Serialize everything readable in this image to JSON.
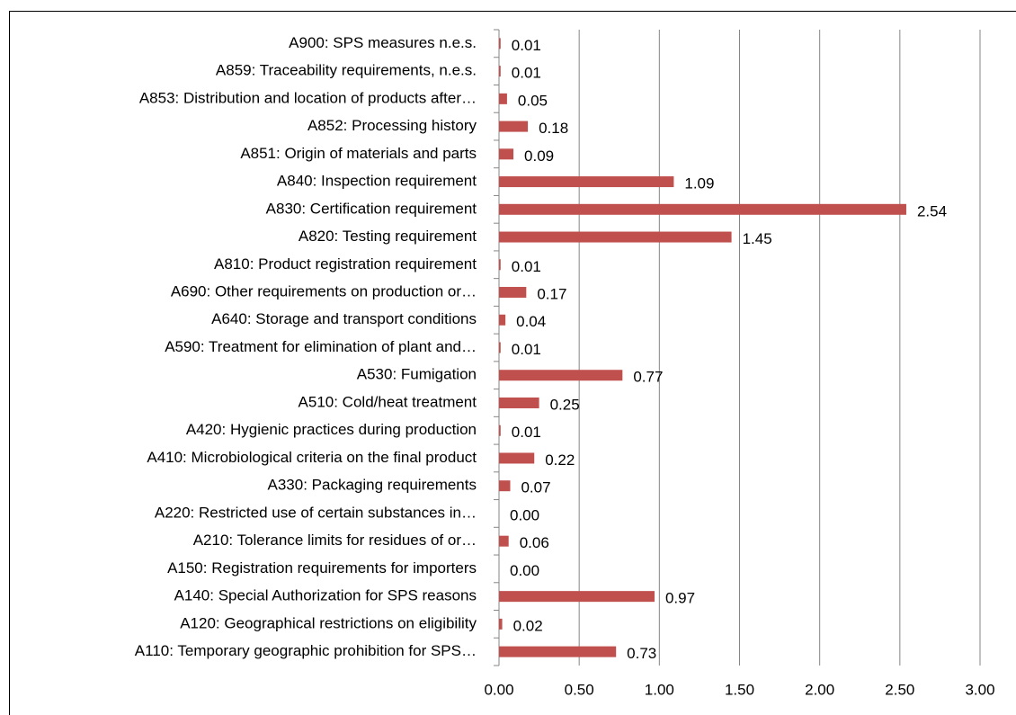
{
  "chart_data": {
    "type": "bar",
    "orientation": "horizontal",
    "color": "#c0504d",
    "grid": true,
    "categories": [
      "A900: SPS measures n.e.s.",
      "A859: Traceability requirements, n.e.s.",
      "A853: Distribution and location of products after…",
      "A852: Processing history",
      "A851: Origin of materials and parts",
      "A840: Inspection requirement",
      "A830: Certification requirement",
      "A820: Testing requirement",
      "A810: Product registration requirement",
      "A690: Other requirements on production or…",
      "A640: Storage and transport conditions",
      "A590: Treatment for elimination of plant and…",
      "A530: Fumigation",
      "A510: Cold/heat treatment",
      "A420: Hygienic practices during production",
      "A410: Microbiological criteria on the final product",
      "A330: Packaging requirements",
      "A220: Restricted use of certain substances in…",
      "A210: Tolerance limits for residues of or…",
      "A150: Registration requirements for importers",
      "A140: Special Authorization for SPS reasons",
      "A120: Geographical restrictions on eligibility",
      "A110: Temporary geographic prohibition for SPS…"
    ],
    "values": [
      0.01,
      0.01,
      0.05,
      0.18,
      0.09,
      1.09,
      2.54,
      1.45,
      0.01,
      0.17,
      0.04,
      0.01,
      0.77,
      0.25,
      0.01,
      0.22,
      0.07,
      0,
      0.06,
      0,
      0.97,
      0.02,
      0.73
    ],
    "value_labels": [
      "0.01",
      "0.01",
      "0.05",
      "0.18",
      "0.09",
      "1.09",
      "2.54",
      "1.45",
      "0.01",
      "0.17",
      "0.04",
      "0.01",
      "0.77",
      "0.25",
      "0.01",
      "0.22",
      "0.07",
      "0.00",
      "0.06",
      "0.00",
      "0.97",
      "0.02",
      "0.73"
    ],
    "xlim": [
      0,
      3
    ],
    "xticks": [
      {
        "value": 0,
        "label": "0.00"
      },
      {
        "value": 0.5,
        "label": "0.50"
      },
      {
        "value": 1,
        "label": "1.00"
      },
      {
        "value": 1.5,
        "label": "1.50"
      },
      {
        "value": 2,
        "label": "2.00"
      },
      {
        "value": 2.5,
        "label": "2.50"
      },
      {
        "value": 3,
        "label": "3.00"
      }
    ]
  }
}
